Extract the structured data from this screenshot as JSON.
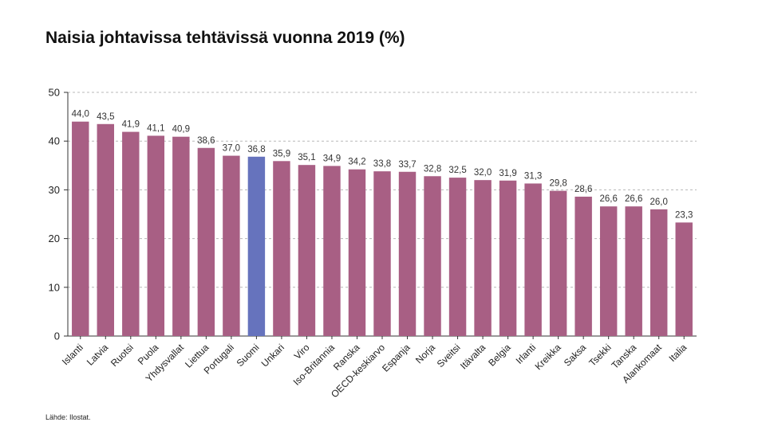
{
  "title": "Naisia johtavissa tehtävissä vuonna 2019 (%)",
  "source": "Lähde: Ilostat.",
  "colors": {
    "bar": "#a85f84",
    "highlight": "#6673bd",
    "grid": "#b8b8b8",
    "axis": "#333333"
  },
  "chart_data": {
    "type": "bar",
    "title": "Naisia johtavissa tehtävissä vuonna 2019 (%)",
    "xlabel": "",
    "ylabel": "",
    "ylim": [
      0,
      50
    ],
    "yticks": [
      0,
      10,
      20,
      30,
      40,
      50
    ],
    "grid": "horizontal-dashed",
    "legend": "none",
    "highlight": "Suomi",
    "categories": [
      "Islanti",
      "Latvia",
      "Ruotsi",
      "Puola",
      "Yhdysvallat",
      "Liettua",
      "Portugali",
      "Suomi",
      "Unkari",
      "Viro",
      "Iso-Britannia",
      "Ranska",
      "OECD-keskiarvo",
      "Espanja",
      "Norja",
      "Sveitsi",
      "Itävalta",
      "Belgia",
      "Irlanti",
      "Kreikka",
      "Saksa",
      "Tsekki",
      "Tanska",
      "Alankomaat",
      "Italia"
    ],
    "values": [
      44.0,
      43.5,
      41.9,
      41.1,
      40.9,
      38.6,
      37.0,
      36.8,
      35.9,
      35.1,
      34.9,
      34.2,
      33.8,
      33.7,
      32.8,
      32.5,
      32.0,
      31.9,
      31.3,
      29.8,
      28.6,
      26.6,
      26.6,
      26.0,
      23.3
    ],
    "value_labels": [
      "44,0",
      "43,5",
      "41,9",
      "41,1",
      "40,9",
      "38,6",
      "37,0",
      "36,8",
      "35,9",
      "35,1",
      "34,9",
      "34,2",
      "33,8",
      "33,7",
      "32,8",
      "32,5",
      "32,0",
      "31,9",
      "31,3",
      "29,8",
      "28,6",
      "26,6",
      "26,6",
      "26,0",
      "23,3"
    ]
  }
}
